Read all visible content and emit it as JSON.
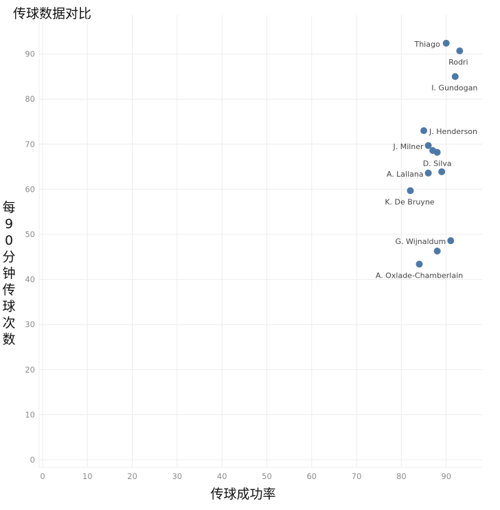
{
  "chart_data": {
    "type": "scatter",
    "title": "传球数据对比",
    "xlabel": "传球成功率",
    "ylabel": "每90分钟传球次数",
    "xlim": [
      0,
      98
    ],
    "ylim": [
      0,
      95
    ],
    "x_ticks": [
      0,
      10,
      20,
      30,
      40,
      50,
      60,
      70,
      80,
      90
    ],
    "y_ticks": [
      0,
      10,
      20,
      30,
      40,
      50,
      60,
      70,
      80,
      90
    ],
    "grid": true,
    "color": "#4e79a7",
    "points": [
      {
        "label": "Thiago",
        "x": 90,
        "y": 92.4
      },
      {
        "label": "Rodri",
        "x": 93,
        "y": 90.7
      },
      {
        "label": "I. Gundogan",
        "x": 92,
        "y": 85
      },
      {
        "label": "J. Henderson",
        "x": 85,
        "y": 73
      },
      {
        "label": "J. Milner",
        "x": 86,
        "y": 69.7
      },
      {
        "label": "",
        "x": 87,
        "y": 68.6
      },
      {
        "label": "D. Silva",
        "x": 88,
        "y": 68.2
      },
      {
        "label": "A. Lallana",
        "x": 86,
        "y": 63.6
      },
      {
        "label": "",
        "x": 89,
        "y": 63.9
      },
      {
        "label": "K. De Bruyne",
        "x": 82,
        "y": 59.7
      },
      {
        "label": "G. Wijnaldum",
        "x": 91,
        "y": 48.6
      },
      {
        "label": "",
        "x": 88,
        "y": 46.3
      },
      {
        "label": "A. Oxlade-Chamberlain",
        "x": 84,
        "y": 43.4
      }
    ]
  }
}
